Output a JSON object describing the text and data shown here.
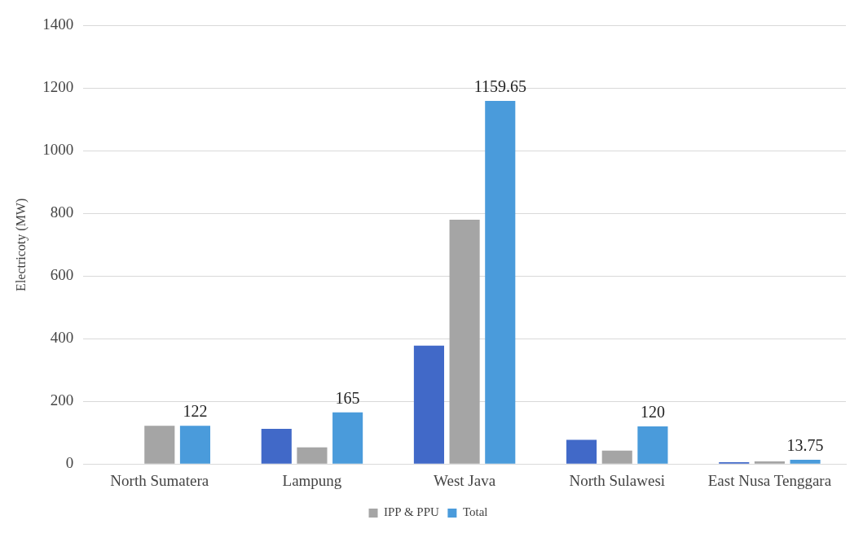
{
  "chart_data": {
    "type": "bar",
    "ylabel": "Electricoty (MW)",
    "categories": [
      "North Sumatera",
      "Lampung",
      "West Java",
      "North Sulawesi",
      "East Nusa Tenggara"
    ],
    "series": [
      {
        "color": "#4169c8",
        "values": [
          0,
          112,
          378,
          77,
          6
        ]
      },
      {
        "name": "IPP & PPU",
        "color": "#a5a5a5",
        "values": [
          122,
          53,
          780,
          43,
          8
        ]
      },
      {
        "name": "Total",
        "color": "#4a9bdb",
        "values": [
          122,
          165,
          1159.65,
          120,
          13.75
        ],
        "value_labels": [
          "122",
          "165",
          "1159.65",
          "120",
          "13.75"
        ]
      }
    ],
    "ylim": [
      0,
      1400
    ],
    "yticks": [
      0,
      200,
      400,
      600,
      800,
      1000,
      1200,
      1400
    ],
    "grid": "y",
    "legend": "bottom"
  }
}
